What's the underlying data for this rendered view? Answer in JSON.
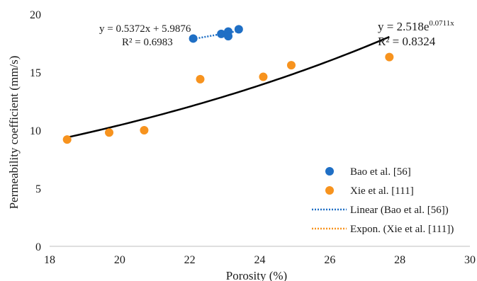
{
  "chart_data": {
    "type": "scatter",
    "xlabel": "Porosity (%)",
    "ylabel": "Permeability coefficient (mm/s)",
    "xlim": [
      18,
      30
    ],
    "ylim": [
      0,
      20
    ],
    "xticks": [
      18,
      20,
      22,
      24,
      26,
      28,
      30
    ],
    "yticks": [
      0,
      5,
      10,
      15,
      20
    ],
    "grid": false,
    "legend_position": "right",
    "series": [
      {
        "name": "Bao et al. [56]",
        "color": "#1f6fc5",
        "points": [
          [
            22.1,
            17.9
          ],
          [
            22.9,
            18.3
          ],
          [
            23.1,
            18.5
          ],
          [
            23.1,
            18.1
          ],
          [
            23.4,
            18.7
          ]
        ]
      },
      {
        "name": "Xie et al. [111]",
        "color": "#f7931e",
        "points": [
          [
            18.5,
            9.2
          ],
          [
            19.7,
            9.8
          ],
          [
            20.7,
            10.0
          ],
          [
            22.3,
            14.4
          ],
          [
            24.1,
            14.6
          ],
          [
            24.9,
            15.6
          ],
          [
            27.7,
            16.3
          ]
        ]
      }
    ],
    "trendlines": [
      {
        "name": "Linear (Bao et al. [56])",
        "type": "linear",
        "color": "#1f6fc5",
        "style": "dotted",
        "x_range": [
          22.1,
          23.4
        ],
        "coefficients": {
          "slope": 0.5372,
          "intercept": 5.9876
        },
        "equation": "y = 0.5372x + 5.9876",
        "r2_label": "R² = 0.6983"
      },
      {
        "name": "Expon. (Xie et al. [111])",
        "type": "exponential",
        "color": "#f7931e",
        "drawn_color": "#000000",
        "style": "dotted",
        "x_range": [
          18.5,
          27.7
        ],
        "coefficients": {
          "a": 2.518,
          "b": 0.0711
        },
        "equation_base": "y = 2.518e",
        "equation_exponent": "0.0711x",
        "r2_label": "R² = 0.8324"
      }
    ]
  }
}
